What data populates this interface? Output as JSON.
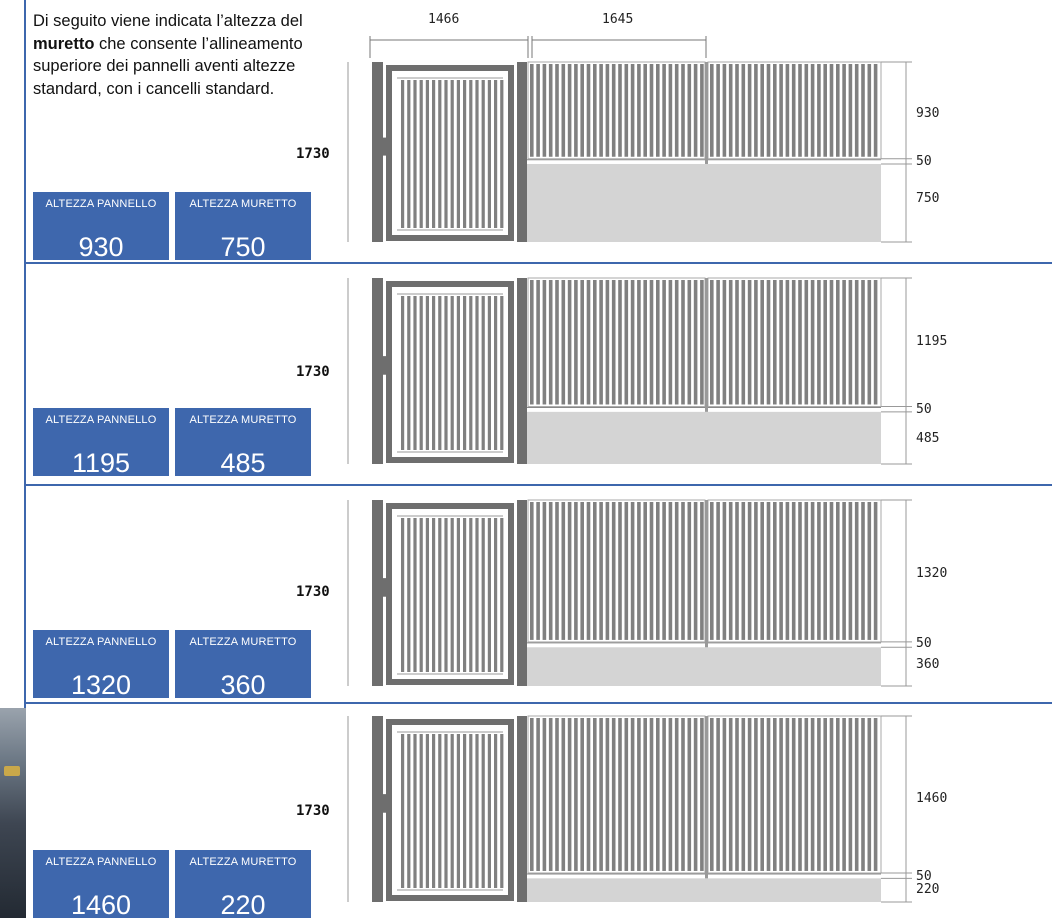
{
  "intro": {
    "part1": "Di seguito viene indicata l’altezza del ",
    "bold": "muretto",
    "part2": " che consente l’allineamento superiore dei pannelli aventi altezze standard, con i cancelli standard."
  },
  "widths": {
    "gate": "1466",
    "panel": "1645"
  },
  "labels": {
    "panel_height": "ALTEZZA PANNELLO",
    "wall_height": "ALTEZZA MURETTO"
  },
  "sections": [
    {
      "total": "1730",
      "panel": "930",
      "joint": "50",
      "wall": "750"
    },
    {
      "total": "1730",
      "panel": "1195",
      "joint": "50",
      "wall": "485"
    },
    {
      "total": "1730",
      "panel": "1320",
      "joint": "50",
      "wall": "360"
    },
    {
      "total": "1730",
      "panel": "1460",
      "joint": "50",
      "wall": "220"
    }
  ],
  "colors": {
    "accent": "#3e67ad",
    "post": "#6e6e6e",
    "slat": "#808080",
    "wall": "#d4d4d4"
  }
}
